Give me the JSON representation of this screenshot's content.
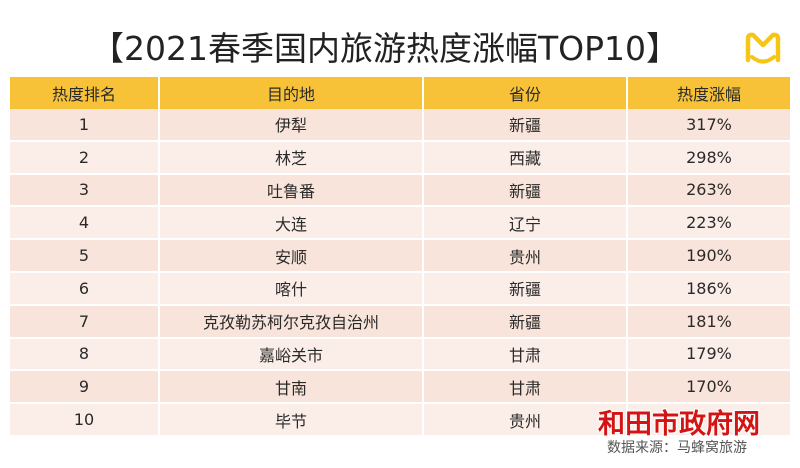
{
  "title": "【2021春季国内旅游热度涨幅TOP10】",
  "logo_icon": "mafengwo-logo",
  "colors": {
    "header": "#f7c238",
    "row_odd": "#f8e4da",
    "row_even": "#fbeee8",
    "logo": "#f5c518",
    "watermark": "#d41414"
  },
  "table": {
    "headers": [
      "热度排名",
      "目的地",
      "省份",
      "热度涨幅"
    ],
    "rows": [
      [
        "1",
        "伊犁",
        "新疆",
        "317%"
      ],
      [
        "2",
        "林芝",
        "西藏",
        "298%"
      ],
      [
        "3",
        "吐鲁番",
        "新疆",
        "263%"
      ],
      [
        "4",
        "大连",
        "辽宁",
        "223%"
      ],
      [
        "5",
        "安顺",
        "贵州",
        "190%"
      ],
      [
        "6",
        "喀什",
        "新疆",
        "186%"
      ],
      [
        "7",
        "克孜勒苏柯尔克孜自治州",
        "新疆",
        "181%"
      ],
      [
        "8",
        "嘉峪关市",
        "甘肃",
        "179%"
      ],
      [
        "9",
        "甘南",
        "甘肃",
        "170%"
      ],
      [
        "10",
        "毕节",
        "贵州",
        ""
      ]
    ]
  },
  "watermark": "和田市政府网",
  "source": "数据来源：马蜂窝旅游"
}
